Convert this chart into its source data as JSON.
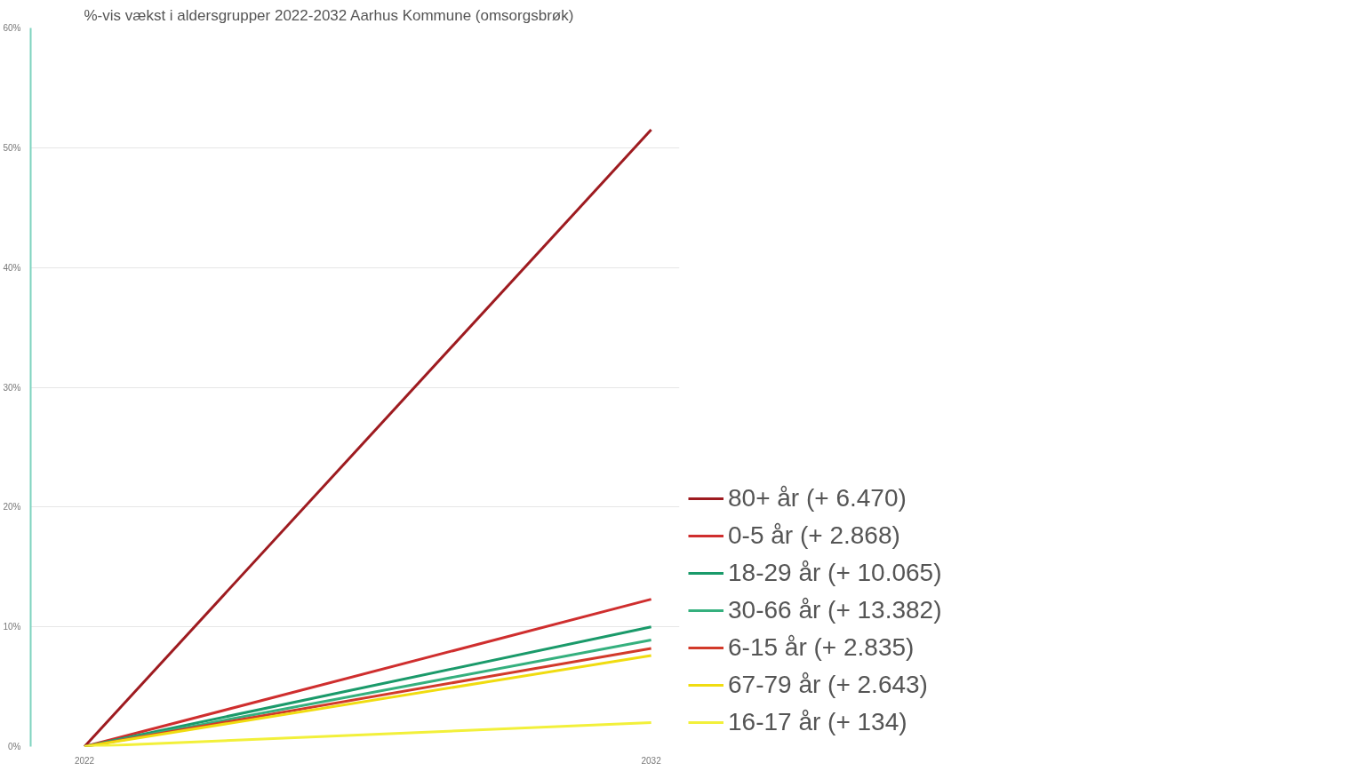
{
  "chart_data": {
    "type": "line",
    "title": "%-vis vækst i aldersgrupper 2022-2032 Aarhus Kommune (omsorgsbrøk)",
    "x": [
      2022,
      2032
    ],
    "xlim": [
      2021.05,
      2032.5
    ],
    "xticks": [
      2022,
      2032
    ],
    "ylim": [
      0,
      60
    ],
    "yticks": [
      {
        "value": 0,
        "label": "0%"
      },
      {
        "value": 10,
        "label": "10%"
      },
      {
        "value": 20,
        "label": "20%"
      },
      {
        "value": 30,
        "label": "30%"
      },
      {
        "value": 40,
        "label": "40%"
      },
      {
        "value": 50,
        "label": "50%"
      },
      {
        "value": 60,
        "label": "60%"
      }
    ],
    "grid": "y",
    "legend": "right",
    "marker": "none",
    "line_style": "solid",
    "series": [
      {
        "name": "80+ år (+ 6.470)",
        "color": "#9e1b20",
        "values": [
          0,
          51.5
        ]
      },
      {
        "name": "0-5 år (+ 2.868)",
        "color": "#cf2e2e",
        "values": [
          0,
          12.3
        ]
      },
      {
        "name": "18-29 år (+ 10.065)",
        "color": "#1a9a6a",
        "values": [
          0,
          10.0
        ]
      },
      {
        "name": "30-66 år (+ 13.382)",
        "color": "#35b07e",
        "values": [
          0,
          8.9
        ]
      },
      {
        "name": "6-15 år (+ 2.835)",
        "color": "#d23a2a",
        "values": [
          0,
          8.2
        ]
      },
      {
        "name": "67-79 år (+ 2.643)",
        "color": "#f0dc10",
        "values": [
          0,
          7.6
        ]
      },
      {
        "name": "16-17 år (+ 134)",
        "color": "#f2f03a",
        "values": [
          0,
          2.0
        ]
      }
    ]
  }
}
